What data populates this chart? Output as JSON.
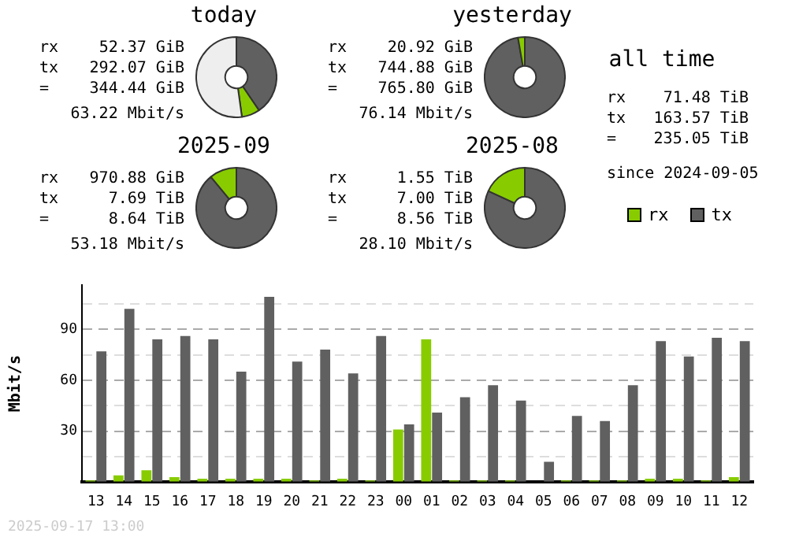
{
  "chart_data": [
    {
      "type": "donut",
      "title": "today",
      "categories": [
        null,
        null,
        null
      ],
      "values": [
        40.5,
        7.3,
        52.2
      ],
      "colors": [
        "#606060",
        "#88cc00",
        "#eeeeee"
      ],
      "annotations": [
        "rx 52.37 GiB",
        "tx 292.07 GiB",
        "= 344.44 GiB",
        "63.22 Mbit/s"
      ]
    },
    {
      "type": "donut",
      "title": "yesterday",
      "categories": [
        null,
        null
      ],
      "values": [
        97.27,
        2.73
      ],
      "colors": [
        "#606060",
        "#88cc00"
      ],
      "annotations": [
        "rx 20.92 GiB",
        "tx 744.88 GiB",
        "= 765.80 GiB",
        "76.14 Mbit/s"
      ]
    },
    {
      "type": "other",
      "title": "all time",
      "annotations": [
        "rx 71.48 TiB",
        "tx 163.57 TiB",
        "= 235.05 TiB",
        "since 2024-09-05"
      ]
    },
    {
      "type": "donut",
      "title": "2025-09",
      "categories": [
        null,
        null
      ],
      "values": [
        89.03,
        10.97
      ],
      "colors": [
        "#606060",
        "#88cc00"
      ],
      "annotations": [
        "rx 970.88 GiB",
        "tx 7.69 TiB",
        "= 8.64 TiB",
        "53.18 Mbit/s"
      ]
    },
    {
      "type": "donut",
      "title": "2025-08",
      "categories": [
        null,
        null
      ],
      "values": [
        81.9,
        18.1
      ],
      "colors": [
        "#606060",
        "#88cc00"
      ],
      "annotations": [
        "rx 1.55 TiB",
        "tx 7.00 TiB",
        "= 8.56 TiB",
        "28.10 Mbit/s"
      ]
    },
    {
      "type": "bar",
      "ylabel": "Mbit/s",
      "categories": [
        "13",
        "14",
        "15",
        "16",
        "17",
        "18",
        "19",
        "20",
        "21",
        "22",
        "23",
        "00",
        "01",
        "02",
        "03",
        "04",
        "05",
        "06",
        "07",
        "08",
        "09",
        "10",
        "11",
        "12"
      ],
      "series": [
        {
          "name": "rx",
          "color": "#88cc00",
          "values": [
            1,
            4,
            7,
            3,
            2,
            2,
            2,
            2,
            1,
            2,
            1,
            31,
            84,
            1,
            1,
            1,
            0,
            1,
            1,
            1,
            2,
            2,
            1,
            3
          ]
        },
        {
          "name": "tx",
          "color": "#606060",
          "values": [
            77,
            102,
            84,
            86,
            84,
            65,
            109,
            71,
            78,
            64,
            86,
            34,
            41,
            50,
            57,
            48,
            12,
            39,
            36,
            57,
            83,
            74,
            85,
            83
          ]
        }
      ],
      "ylim": [
        0,
        116
      ],
      "yticks": [
        {
          "value": 0,
          "label": null
        },
        {
          "value": 15,
          "label": null
        },
        30,
        {
          "value": 45,
          "label": null
        },
        60,
        {
          "value": 75,
          "label": null
        },
        90,
        {
          "value": 105,
          "label": null
        }
      ],
      "grid": "y",
      "legend": "top right",
      "annotations": [
        "2025-09-17 13:00"
      ]
    }
  ]
}
